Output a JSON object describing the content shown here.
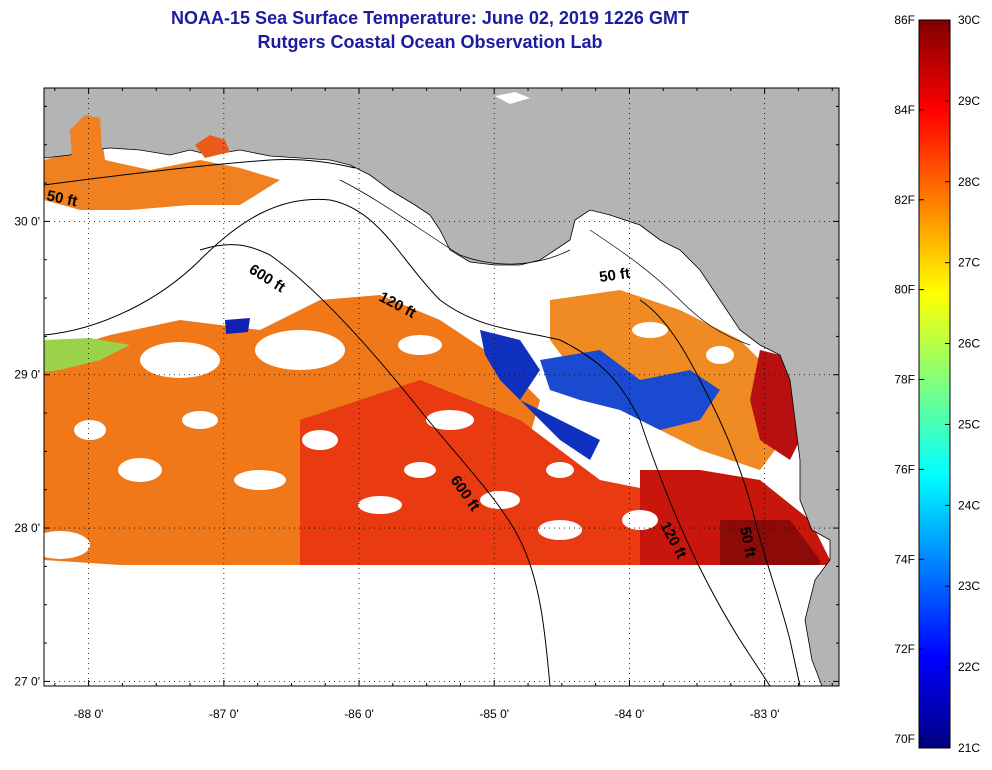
{
  "title": "NOAA-15 Sea Surface Temperature:  June 02, 2019 1226 GMT",
  "subtitle": "Rutgers Coastal Ocean Observation Lab",
  "map": {
    "lon_range": [
      -88.33,
      -82.45
    ],
    "lat_range": [
      26.97,
      30.87
    ],
    "lon_ticks": [
      {
        "value": -88,
        "label": "-88 0'"
      },
      {
        "value": -87,
        "label": "-87 0'"
      },
      {
        "value": -86,
        "label": "-86 0'"
      },
      {
        "value": -85,
        "label": "-85 0'"
      },
      {
        "value": -84,
        "label": "-84 0'"
      },
      {
        "value": -83,
        "label": "-83 0'"
      }
    ],
    "lat_ticks": [
      {
        "value": 30,
        "label": "30 0'"
      },
      {
        "value": 29,
        "label": "29 0'"
      },
      {
        "value": 28,
        "label": "28 0'"
      },
      {
        "value": 27,
        "label": "27 0'"
      }
    ],
    "land_color": "#b4b4b4",
    "cloud_color": "#ffffff",
    "contour_labels": [
      "50 ft",
      "600 ft",
      "120 ft",
      "50 ft",
      "600 ft",
      "120 ft",
      "50 ft"
    ]
  },
  "colorbar": {
    "fahrenheit_labels": [
      "86F",
      "84F",
      "82F",
      "80F",
      "78F",
      "76F",
      "74F",
      "72F",
      "70F"
    ],
    "celsius_labels": [
      "30C",
      "29C",
      "28C",
      "27C",
      "26C",
      "25C",
      "24C",
      "23C",
      "22C",
      "21C"
    ],
    "range_c": [
      21,
      30
    ],
    "stops": [
      "#00007f",
      "#0000ff",
      "#007fff",
      "#00ffff",
      "#7fff7f",
      "#ffff00",
      "#ff7f00",
      "#ff0000",
      "#7f0000"
    ]
  }
}
